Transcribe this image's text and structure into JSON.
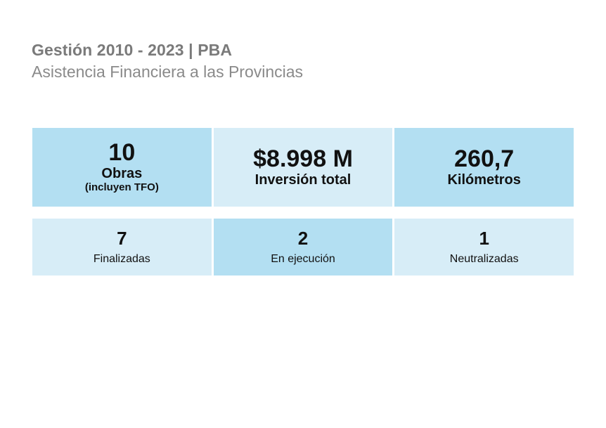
{
  "header": {
    "title": "Gestión 2010 - 2023 | PBA",
    "subtitle": "Asistencia Financiera a las Provincias"
  },
  "summary": [
    {
      "value": "10",
      "label": "Obras",
      "note": "(incluyen TFO)"
    },
    {
      "value": "$8.998 M",
      "label": "Inversión total"
    },
    {
      "value": "260,7",
      "label": "Kilómetros"
    }
  ],
  "status": [
    {
      "value": "7",
      "label": "Finalizadas"
    },
    {
      "value": "2",
      "label": "En ejecución"
    },
    {
      "value": "1",
      "label": "Neutralizadas"
    }
  ],
  "colors": {
    "dark_cell": "#b3dff2",
    "light_cell": "#d7edf7",
    "header_text": "#7a7a7a"
  }
}
